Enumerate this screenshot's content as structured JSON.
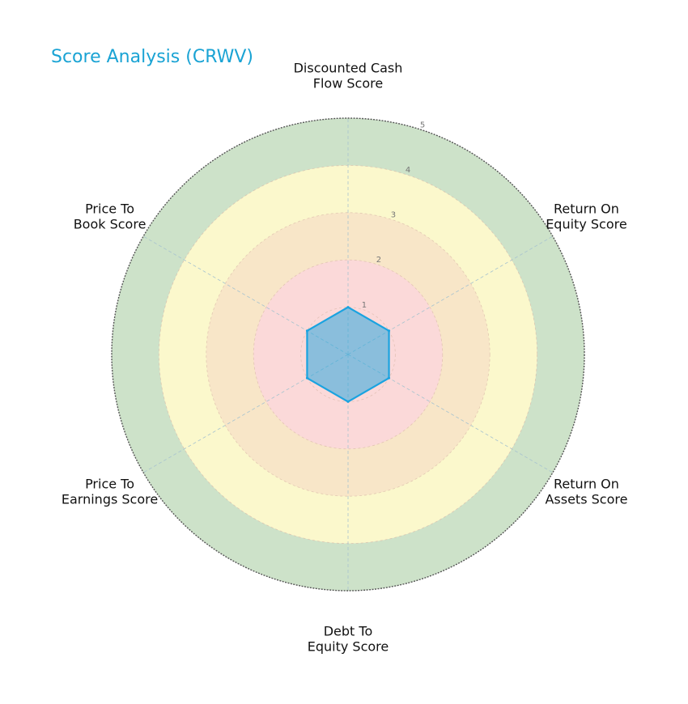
{
  "chart_data": {
    "type": "radar",
    "title": "Score Analysis (CRWV)",
    "axes": [
      [
        "Discounted Cash",
        "Flow Score"
      ],
      [
        "Return On",
        "Equity Score"
      ],
      [
        "Return On",
        "Assets Score"
      ],
      [
        "Debt To",
        "Equity Score"
      ],
      [
        "Price To",
        "Earnings Score"
      ],
      [
        "Price To",
        "Book Score"
      ]
    ],
    "rlim": [
      0,
      5
    ],
    "rticks": [
      1,
      2,
      3,
      4,
      5
    ],
    "series": [
      {
        "values": [
          1,
          1,
          1,
          1,
          1,
          1
        ],
        "color": "#1aa3e0"
      }
    ],
    "bands": [
      {
        "from": 0,
        "to": 2,
        "color": "#fbd9d9"
      },
      {
        "from": 2,
        "to": 3,
        "color": "#f8e6c8"
      },
      {
        "from": 3,
        "to": 4,
        "color": "#fbf8cc"
      },
      {
        "from": 4,
        "to": 5,
        "color": "#cde2c9"
      }
    ]
  }
}
